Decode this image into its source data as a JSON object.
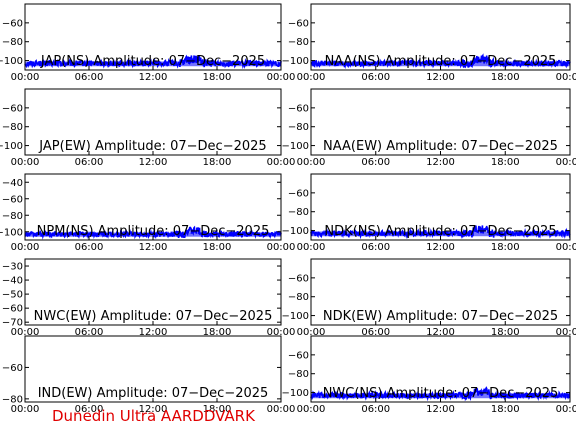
{
  "footer_text": "Dunedin Ultra AARDDVARK",
  "colors": {
    "trace": "#0000ff",
    "axis": "#000000",
    "footer": "#e00000"
  },
  "chart_data": [
    {
      "type": "line",
      "title": "JAP(NS) Amplitude: 07-Dec-2025",
      "x_ticks": [
        "00:00",
        "06:00",
        "12:00",
        "18:00",
        "00:00"
      ],
      "xlim": [
        0,
        24
      ],
      "y_ticks": [
        -60,
        -80,
        -100
      ],
      "ylim": [
        -110,
        -40
      ],
      "series": [
        {
          "values": []
        }
      ]
    },
    {
      "type": "line",
      "title": "NAA(NS) Amplitude: 07-Dec-2025",
      "x_ticks": [
        "00:00",
        "06:00",
        "12:00",
        "18:00",
        "00:00"
      ],
      "xlim": [
        0,
        24
      ],
      "y_ticks": [
        -60,
        -80,
        -100
      ],
      "ylim": [
        -110,
        -40
      ],
      "series": [
        {
          "values": []
        }
      ]
    },
    {
      "type": "line",
      "title": "JAP(EW) Amplitude: 07-Dec-2025",
      "x_ticks": [
        "00:00",
        "06:00",
        "12:00",
        "18:00",
        "00:00"
      ],
      "xlim": [
        0,
        24
      ],
      "y_ticks": [
        -60,
        -80,
        -100
      ],
      "ylim": [
        -110,
        -40
      ],
      "series": [
        {
          "values": []
        }
      ]
    },
    {
      "type": "line",
      "title": "NAA(EW) Amplitude: 07-Dec-2025",
      "x_ticks": [
        "00:00",
        "06:00",
        "12:00",
        "18:00",
        "00:00"
      ],
      "xlim": [
        0,
        24
      ],
      "y_ticks": [
        -60,
        -80,
        -100
      ],
      "ylim": [
        -110,
        -40
      ],
      "series": [
        {
          "values": []
        }
      ]
    },
    {
      "type": "line",
      "title": "NPM(NS) Amplitude: 07-Dec-2025",
      "x_ticks": [
        "00:00",
        "06:00",
        "12:00",
        "18:00",
        "00:00"
      ],
      "xlim": [
        0,
        24
      ],
      "y_ticks": [
        -40,
        -60,
        -80,
        -100
      ],
      "ylim": [
        -110,
        -30
      ],
      "series": [
        {
          "values": []
        }
      ]
    },
    {
      "type": "line",
      "title": "NDK(NS) Amplitude: 07-Dec-2025",
      "x_ticks": [
        "00:00",
        "06:00",
        "12:00",
        "18:00",
        "00:00"
      ],
      "xlim": [
        0,
        24
      ],
      "y_ticks": [
        -60,
        -80,
        -100
      ],
      "ylim": [
        -110,
        -40
      ],
      "series": [
        {
          "values": []
        }
      ]
    },
    {
      "type": "line",
      "title": "NWC(EW) Amplitude: 07-Dec-2025",
      "x_ticks": [
        "00:00",
        "06:00",
        "12:00",
        "18:00",
        "00:00"
      ],
      "xlim": [
        0,
        24
      ],
      "y_ticks": [
        -30,
        -40,
        -50,
        -60,
        -70
      ],
      "ylim": [
        -72,
        -25
      ],
      "series": [
        {
          "values": []
        }
      ]
    },
    {
      "type": "line",
      "title": "NDK(EW) Amplitude: 07-Dec-2025",
      "x_ticks": [
        "00:00",
        "06:00",
        "12:00",
        "18:00",
        "00:00"
      ],
      "xlim": [
        0,
        24
      ],
      "y_ticks": [
        -60,
        -80,
        -100
      ],
      "ylim": [
        -110,
        -40
      ],
      "series": [
        {
          "values": []
        }
      ]
    },
    {
      "type": "line",
      "title": "IND(EW) Amplitude: 07-Dec-2025",
      "x_ticks": [
        "00:00",
        "06:00",
        "12:00",
        "18:00",
        "00:00"
      ],
      "xlim": [
        0,
        24
      ],
      "y_ticks": [
        -60,
        -80
      ],
      "ylim": [
        -82,
        -40
      ],
      "series": [
        {
          "values": []
        }
      ]
    },
    {
      "type": "line",
      "title": "NWC(NS) Amplitude: 07-Dec-2025",
      "x_ticks": [
        "00:00",
        "06:00",
        "12:00",
        "18:00",
        "00:00"
      ],
      "xlim": [
        0,
        24
      ],
      "y_ticks": [
        -60,
        -80,
        -100
      ],
      "ylim": [
        -110,
        -40
      ],
      "series": [
        {
          "values": []
        }
      ]
    }
  ]
}
